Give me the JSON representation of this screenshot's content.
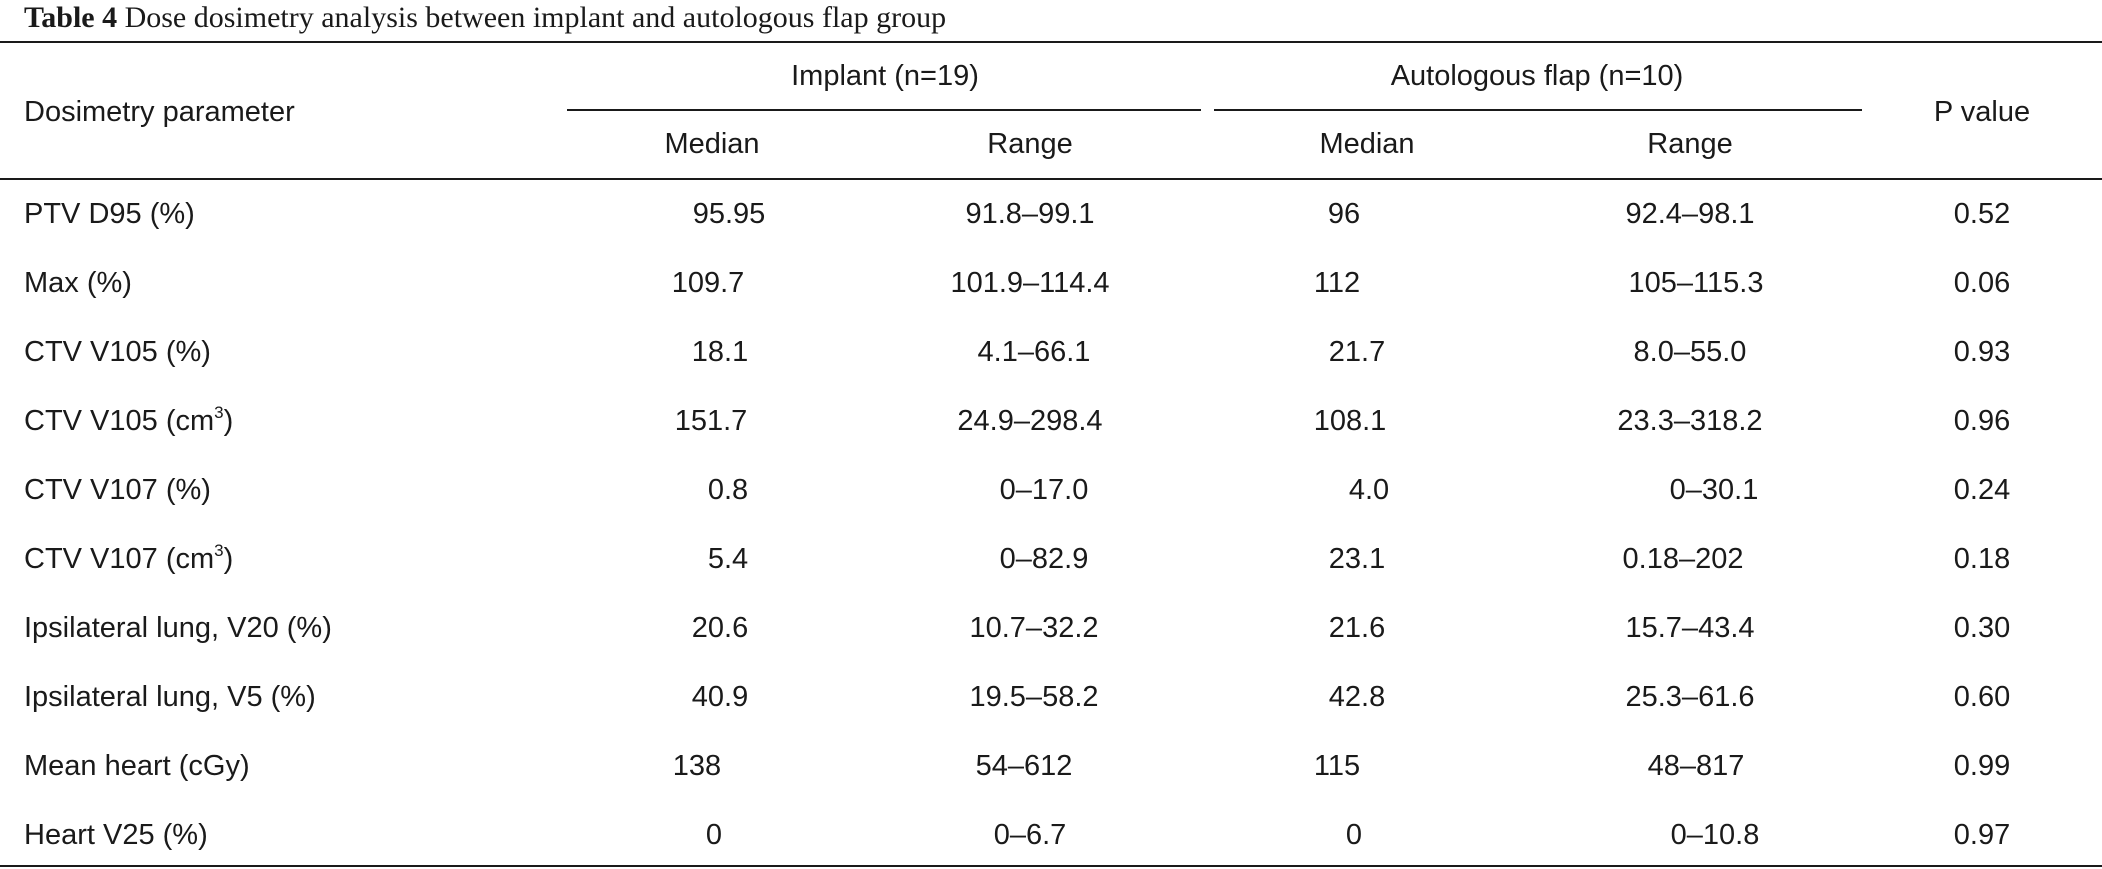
{
  "caption": {
    "label": "Table 4",
    "title": "Dose dosimetry analysis between implant and autologous flap group"
  },
  "header": {
    "parameter": "Dosimetry parameter",
    "group1": "Implant (n=19)",
    "group2": "Autologous flap (n=10)",
    "p_value": "P value",
    "median": "Median",
    "range": "Range"
  },
  "rows": [
    {
      "param": "PTV D95 (%)",
      "sup": "",
      "param_suffix": "",
      "m1": "95.95",
      "r1": "91.8–99.1",
      "m2": "96",
      "r2": "92.4–98.1",
      "p": "0.52"
    },
    {
      "param": "Max (%)",
      "sup": "",
      "param_suffix": "",
      "m1": "109.7",
      "r1": "101.9–114.4",
      "m2": "112",
      "r2": "105–115.3",
      "p": "0.06"
    },
    {
      "param": "CTV V105 (%)",
      "sup": "",
      "param_suffix": "",
      "m1": "18.1",
      "r1": "4.1–66.1",
      "m2": "21.7",
      "r2": "8.0–55.0",
      "p": "0.93"
    },
    {
      "param": "CTV V105 (cm",
      "sup": "3",
      "param_suffix": ")",
      "m1": "151.7",
      "r1": "24.9–298.4",
      "m2": "108.1",
      "r2": "23.3–318.2",
      "p": "0.96"
    },
    {
      "param": "CTV V107 (%)",
      "sup": "",
      "param_suffix": "",
      "m1": "0.8",
      "r1": "0–17.0",
      "m2": "4.0",
      "r2": "0–30.1",
      "p": "0.24"
    },
    {
      "param": "CTV V107 (cm",
      "sup": "3",
      "param_suffix": ")",
      "m1": "5.4",
      "r1": "0–82.9",
      "m2": "23.1",
      "r2": "0.18–202",
      "p": "0.18"
    },
    {
      "param": "Ipsilateral lung, V20 (%)",
      "sup": "",
      "param_suffix": "",
      "m1": "20.6",
      "r1": "10.7–32.2",
      "m2": "21.6",
      "r2": "15.7–43.4",
      "p": "0.30"
    },
    {
      "param": "Ipsilateral lung, V5 (%)",
      "sup": "",
      "param_suffix": "",
      "m1": "40.9",
      "r1": "19.5–58.2",
      "m2": "42.8",
      "r2": "25.3–61.6",
      "p": "0.60"
    },
    {
      "param": "Mean heart (cGy)",
      "sup": "",
      "param_suffix": "",
      "m1": "138",
      "r1": "54–612",
      "m2": "115",
      "r2": "48–817",
      "p": "0.99"
    },
    {
      "param": "Heart V25 (%)",
      "sup": "",
      "param_suffix": "",
      "m1": "0",
      "r1": "0–6.7",
      "m2": "0",
      "r2": "0–10.8",
      "p": "0.97"
    }
  ]
}
